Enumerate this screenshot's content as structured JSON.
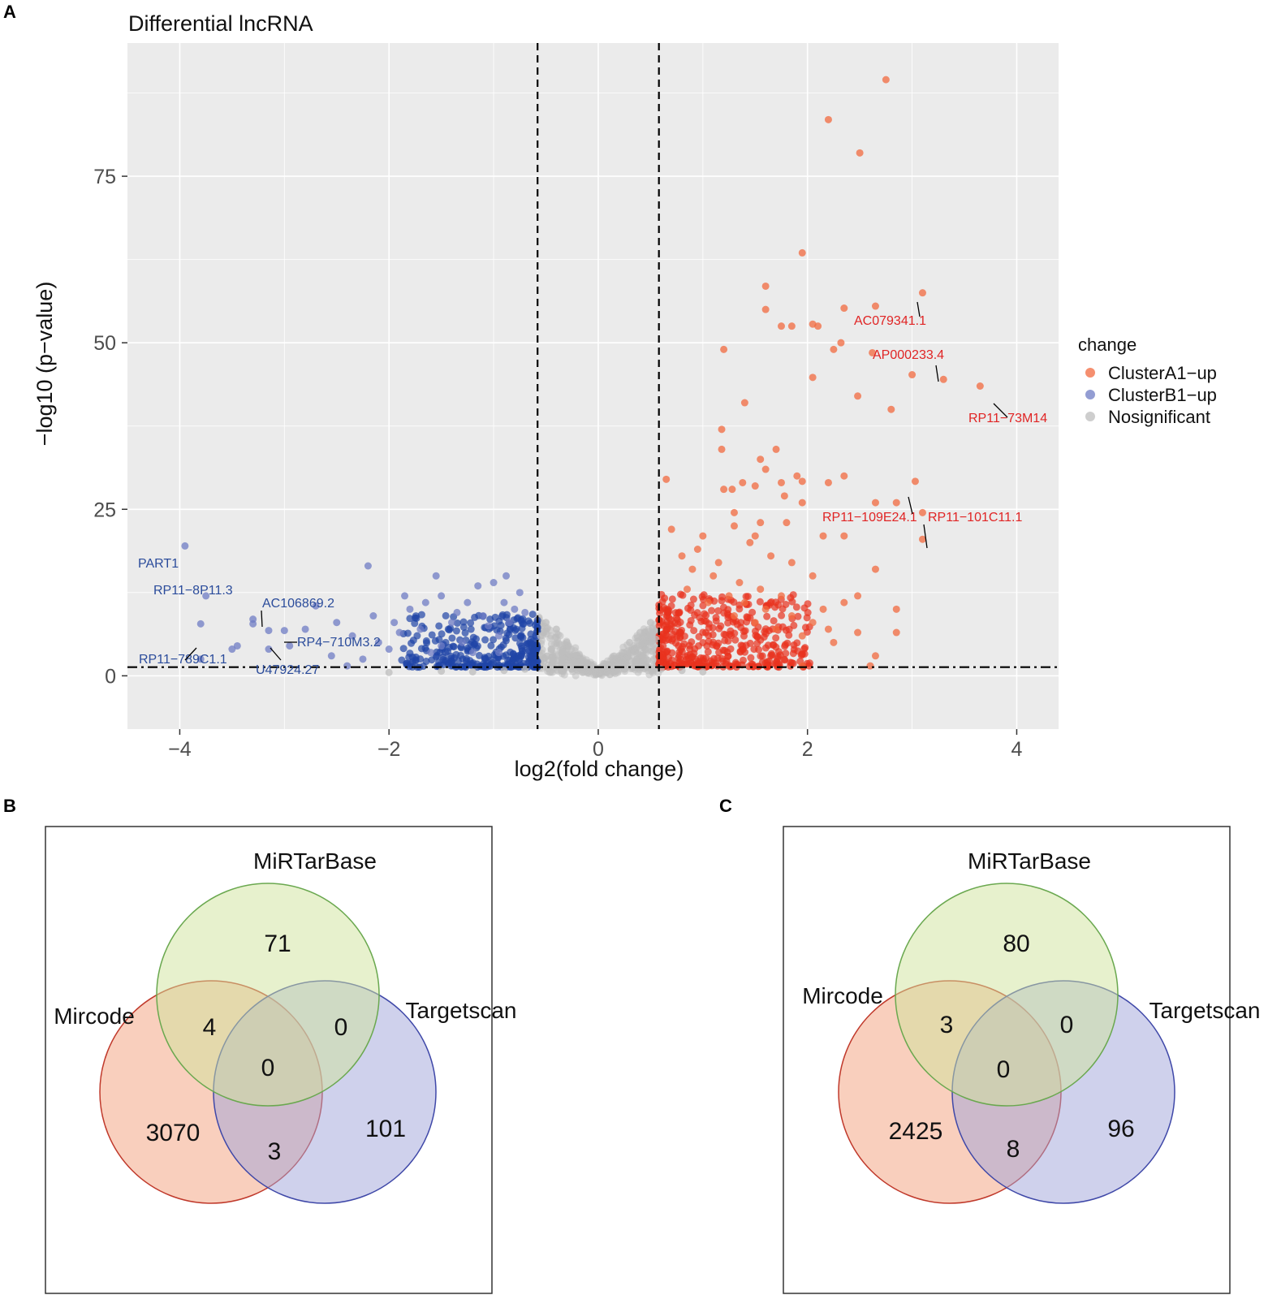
{
  "panels": {
    "a": "A",
    "b": "B",
    "c": "C"
  },
  "colors": {
    "up_a": "#f26a3f",
    "up_a_sig": "#e8321e",
    "up_b": "#6f7cc4",
    "up_b_sig": "#1f45a6",
    "nosig": "#bdbdbd",
    "panel_bg": "#ebebeb",
    "grid": "#ffffff",
    "label_a": "#e02424",
    "label_b": "#2b4c9b",
    "venn_mircode": "#f4a07c",
    "venn_mirtarbase": "#cfe39b",
    "venn_targetscan": "#9fa3d9"
  },
  "chart_data": [
    {
      "type": "scatter",
      "title": "Differential lncRNA",
      "xlabel": "log2(fold change)",
      "ylabel": "−log10 (p−value)",
      "xlim": [
        -4.5,
        4.4
      ],
      "ylim": [
        -8,
        95
      ],
      "xticks": [
        -4,
        -2,
        0,
        2,
        4
      ],
      "xtick_labels": [
        "−4",
        "−2",
        "0",
        "2",
        "4"
      ],
      "yticks": [
        0,
        25,
        50,
        75
      ],
      "ytick_labels": [
        "0",
        "25",
        "50",
        "75"
      ],
      "thresholds": {
        "x": [
          -0.58,
          0.58
        ],
        "y": 1.3
      },
      "legend": {
        "title": "change",
        "position": "right",
        "entries": [
          "ClusterA1−up",
          "ClusterB1−up",
          "Nosignificant"
        ]
      },
      "series": [
        {
          "name": "ClusterA1−up",
          "points": [
            [
              2.75,
              89.5
            ],
            [
              2.2,
              83.5
            ],
            [
              2.5,
              78.5
            ],
            [
              1.95,
              63.5
            ],
            [
              1.6,
              58.5
            ],
            [
              3.1,
              57.5
            ],
            [
              2.65,
              55.5
            ],
            [
              2.35,
              55.2
            ],
            [
              1.6,
              55
            ],
            [
              2.05,
              52.8
            ],
            [
              1.75,
              52.5
            ],
            [
              1.85,
              52.5
            ],
            [
              2.1,
              52.5
            ],
            [
              2.25,
              49
            ],
            [
              2.32,
              50
            ],
            [
              2.62,
              48.5
            ],
            [
              3.0,
              45.2
            ],
            [
              3.3,
              44.5
            ],
            [
              3.65,
              43.5
            ],
            [
              2.05,
              44.8
            ],
            [
              1.2,
              49
            ],
            [
              2.48,
              42
            ],
            [
              1.4,
              41
            ],
            [
              2.8,
              40
            ],
            [
              1.18,
              37
            ],
            [
              1.18,
              34
            ],
            [
              1.7,
              34
            ],
            [
              1.55,
              32.5
            ],
            [
              1.6,
              31
            ],
            [
              1.9,
              30
            ],
            [
              2.35,
              30
            ],
            [
              3.03,
              29.2
            ],
            [
              0.65,
              29.5
            ],
            [
              1.38,
              29
            ],
            [
              1.75,
              29
            ],
            [
              1.95,
              29.2
            ],
            [
              2.2,
              29
            ],
            [
              1.5,
              28.5
            ],
            [
              1.2,
              28
            ],
            [
              1.28,
              28
            ],
            [
              1.78,
              27
            ],
            [
              1.95,
              26
            ],
            [
              2.65,
              26
            ],
            [
              2.85,
              26
            ],
            [
              3.1,
              24.5
            ],
            [
              3.1,
              20.5
            ],
            [
              1.3,
              24.5
            ],
            [
              1.55,
              23
            ],
            [
              1.8,
              23
            ],
            [
              1.3,
              22.5
            ],
            [
              1.0,
              21
            ],
            [
              1.5,
              21
            ],
            [
              2.15,
              21
            ],
            [
              2.35,
              21
            ],
            [
              2.65,
              16
            ],
            [
              2.48,
              12
            ],
            [
              2.85,
              10
            ],
            [
              2.48,
              6.5
            ],
            [
              2.85,
              6.5
            ],
            [
              2.65,
              3
            ],
            [
              1.95,
              1.5
            ],
            [
              2.6,
              1.5
            ],
            [
              0.7,
              22
            ],
            [
              0.8,
              18
            ],
            [
              0.9,
              16
            ],
            [
              1.1,
              15
            ],
            [
              1.25,
              12
            ],
            [
              1.4,
              11
            ],
            [
              1.6,
              10
            ],
            [
              1.85,
              9
            ],
            [
              2.05,
              8
            ],
            [
              2.2,
              7
            ],
            [
              0.85,
              13
            ],
            [
              1.05,
              11
            ],
            [
              1.3,
              9
            ],
            [
              1.5,
              8
            ],
            [
              1.7,
              7
            ],
            [
              1.95,
              6
            ],
            [
              2.25,
              5
            ],
            [
              0.95,
              19
            ],
            [
              1.15,
              17
            ],
            [
              1.35,
              14
            ],
            [
              1.55,
              13
            ],
            [
              1.75,
              12
            ],
            [
              2.15,
              10
            ],
            [
              2.35,
              11
            ],
            [
              1.45,
              20
            ],
            [
              1.65,
              18
            ],
            [
              1.85,
              17
            ],
            [
              2.05,
              15
            ]
          ]
        },
        {
          "name": "ClusterB1−up",
          "points": [
            [
              -3.95,
              19.5
            ],
            [
              -3.75,
              12
            ],
            [
              -3.8,
              7.8
            ],
            [
              -3.3,
              8.5
            ],
            [
              -3.3,
              7.8
            ],
            [
              -3.15,
              6.8
            ],
            [
              -3.15,
              4
            ],
            [
              -3.0,
              6.8
            ],
            [
              -2.95,
              4.5
            ],
            [
              -2.8,
              7
            ],
            [
              -2.7,
              10.5
            ],
            [
              -3.5,
              4
            ],
            [
              -3.45,
              4.5
            ],
            [
              -3.8,
              2.5
            ],
            [
              -2.55,
              3
            ],
            [
              -2.2,
              16.5
            ],
            [
              -1.95,
              8
            ],
            [
              -1.55,
              15
            ],
            [
              -1.5,
              12
            ],
            [
              -1.25,
              11
            ],
            [
              -1.0,
              14
            ],
            [
              -0.88,
              15
            ],
            [
              -0.9,
              11
            ],
            [
              -1.8,
              10
            ],
            [
              -2.35,
              6
            ],
            [
              -2.1,
              5
            ],
            [
              -1.7,
              7
            ],
            [
              -1.4,
              8
            ],
            [
              -1.1,
              9
            ],
            [
              -0.8,
              10
            ],
            [
              -2.0,
              4
            ],
            [
              -1.3,
              5
            ],
            [
              -0.95,
              6
            ],
            [
              -1.6,
              3.5
            ],
            [
              -2.25,
              2.5
            ],
            [
              -2.4,
              1.5
            ],
            [
              -1.85,
              12
            ],
            [
              -1.15,
              13.5
            ],
            [
              -0.75,
              12.5
            ],
            [
              -1.65,
              11
            ],
            [
              -0.7,
              9.5
            ],
            [
              -1.35,
              9.5
            ],
            [
              -2.15,
              9
            ],
            [
              -1.05,
              7.5
            ],
            [
              -2.5,
              8
            ],
            [
              -1.9,
              6.5
            ],
            [
              -0.85,
              8
            ],
            [
              -1.5,
              4.5
            ],
            [
              -1.2,
              3.5
            ],
            [
              -0.95,
              3.5
            ]
          ]
        },
        {
          "name": "Nosignificant",
          "points": [
            [
              -0.5,
              8
            ],
            [
              -0.4,
              7
            ],
            [
              -0.3,
              5
            ],
            [
              -0.2,
              3
            ],
            [
              -0.1,
              1.5
            ],
            [
              0.0,
              0.3
            ],
            [
              0.1,
              1.5
            ],
            [
              0.2,
              3
            ],
            [
              0.3,
              5
            ],
            [
              0.4,
              6.5
            ],
            [
              0.5,
              8
            ],
            [
              0.45,
              4
            ],
            [
              -0.45,
              4
            ],
            [
              -0.35,
              2
            ],
            [
              0.35,
              2
            ],
            [
              -0.25,
              1
            ],
            [
              0.25,
              1
            ],
            [
              -0.15,
              0.5
            ],
            [
              0.15,
              0.5
            ],
            [
              -0.55,
              6
            ],
            [
              0.55,
              5.5
            ],
            [
              0.6,
              1
            ],
            [
              0.8,
              0.8
            ],
            [
              1.0,
              0.6
            ],
            [
              -0.7,
              1
            ],
            [
              -0.9,
              0.8
            ],
            [
              -1.2,
              0.6
            ],
            [
              -1.5,
              0.7
            ],
            [
              -2.0,
              0.5
            ]
          ]
        }
      ],
      "labels": [
        {
          "text": "AC079341.1",
          "group": "a"
        },
        {
          "text": "AP000233.4",
          "group": "a"
        },
        {
          "text": "RP11−73M14",
          "group": "a"
        },
        {
          "text": "RP11−109E24.1",
          "group": "a"
        },
        {
          "text": "RP11−101C11.1",
          "group": "a"
        },
        {
          "text": "PART1",
          "group": "b"
        },
        {
          "text": "RP11−8P11.3",
          "group": "b"
        },
        {
          "text": "AC106869.2",
          "group": "b"
        },
        {
          "text": "RP4−710M3.2",
          "group": "b"
        },
        {
          "text": "RP11−789C1.1",
          "group": "b"
        },
        {
          "text": "U47924.27",
          "group": "b"
        }
      ]
    },
    {
      "type": "venn",
      "sets": [
        "MiRTarBase",
        "Mircode",
        "Targetscan"
      ],
      "regions": {
        "mirtarbase_only": "71",
        "mircode_mirtarbase": "4",
        "mirtarbase_targetscan": "0",
        "all_three": "0",
        "mircode_only": "3070",
        "mircode_targetscan": "3",
        "targetscan_only": "101"
      }
    },
    {
      "type": "venn",
      "sets": [
        "MiRTarBase",
        "Mircode",
        "Targetscan"
      ],
      "regions": {
        "mirtarbase_only": "80",
        "mircode_mirtarbase": "3",
        "mirtarbase_targetscan": "0",
        "all_three": "0",
        "mircode_only": "2425",
        "mircode_targetscan": "8",
        "targetscan_only": "96"
      }
    }
  ]
}
